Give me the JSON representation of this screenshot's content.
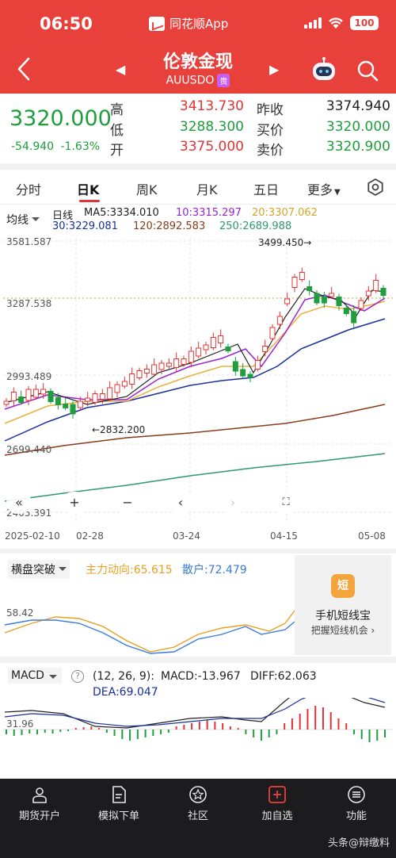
{
  "status": {
    "time": "06:50",
    "app_name": "同花顺App",
    "battery": "100"
  },
  "header": {
    "title": "伦敦金现",
    "code": "AUUSDO",
    "code_tag": "贵"
  },
  "quote": {
    "price": "3320.000",
    "change": "-54.940",
    "change_pct": "-1.63%",
    "high_label": "高",
    "high": "3413.730",
    "low_label": "低",
    "low": "3288.300",
    "open_label": "开",
    "open": "3375.000",
    "prev_close_label": "昨收",
    "prev_close": "3374.940",
    "bid_label": "买价",
    "bid": "3320.000",
    "ask_label": "卖价",
    "ask": "3320.900"
  },
  "tabs": [
    "分时",
    "日K",
    "周K",
    "月K",
    "五日",
    "更多"
  ],
  "active_tab": "日K",
  "ma_legend": {
    "selector": "均线",
    "period_label": "日线",
    "ma5": "MA5:3334.010",
    "ma10": "10:3315.297",
    "ma20": "20:3307.062",
    "ma30": "30:3229.081",
    "ma120": "120:2892.583",
    "ma250": "250:2689.988"
  },
  "chart": {
    "y_labels": [
      "3581.587",
      "3287.538",
      "2993.489",
      "2699.440",
      "2405.391"
    ],
    "x_labels": [
      "2025-02-10",
      "02-28",
      "03-24",
      "04-15",
      "05-08"
    ],
    "high_annotation": "3499.450→",
    "low_annotation": "←2832.200",
    "colors": {
      "up": "#e23434",
      "down": "#1e9e3c",
      "ma5": "#222222",
      "ma10": "#9b1fd6",
      "ma20": "#e8b23a",
      "ma30": "#1a2f9e",
      "ma120": "#8b3a1a",
      "ma250": "#2c9a6c"
    }
  },
  "indicator1": {
    "selector": "横盘突破",
    "main_force": "主力动向:65.615",
    "retail": "散户:72.479",
    "level_label": "58.42"
  },
  "ad": {
    "icon_text": "短",
    "title": "手机短线宝",
    "subtitle": "把握短线机会 ›"
  },
  "macd": {
    "selector": "MACD",
    "params": "(12, 26, 9):",
    "macd": "MACD:-13.967",
    "diff": "DIFF:62.063",
    "dea": "DEA:69.047",
    "level_label": "31.96"
  },
  "nav": [
    "期货开户",
    "模拟下单",
    "社区",
    "加自选",
    "功能"
  ],
  "watermark": "头条@辩缴料"
}
